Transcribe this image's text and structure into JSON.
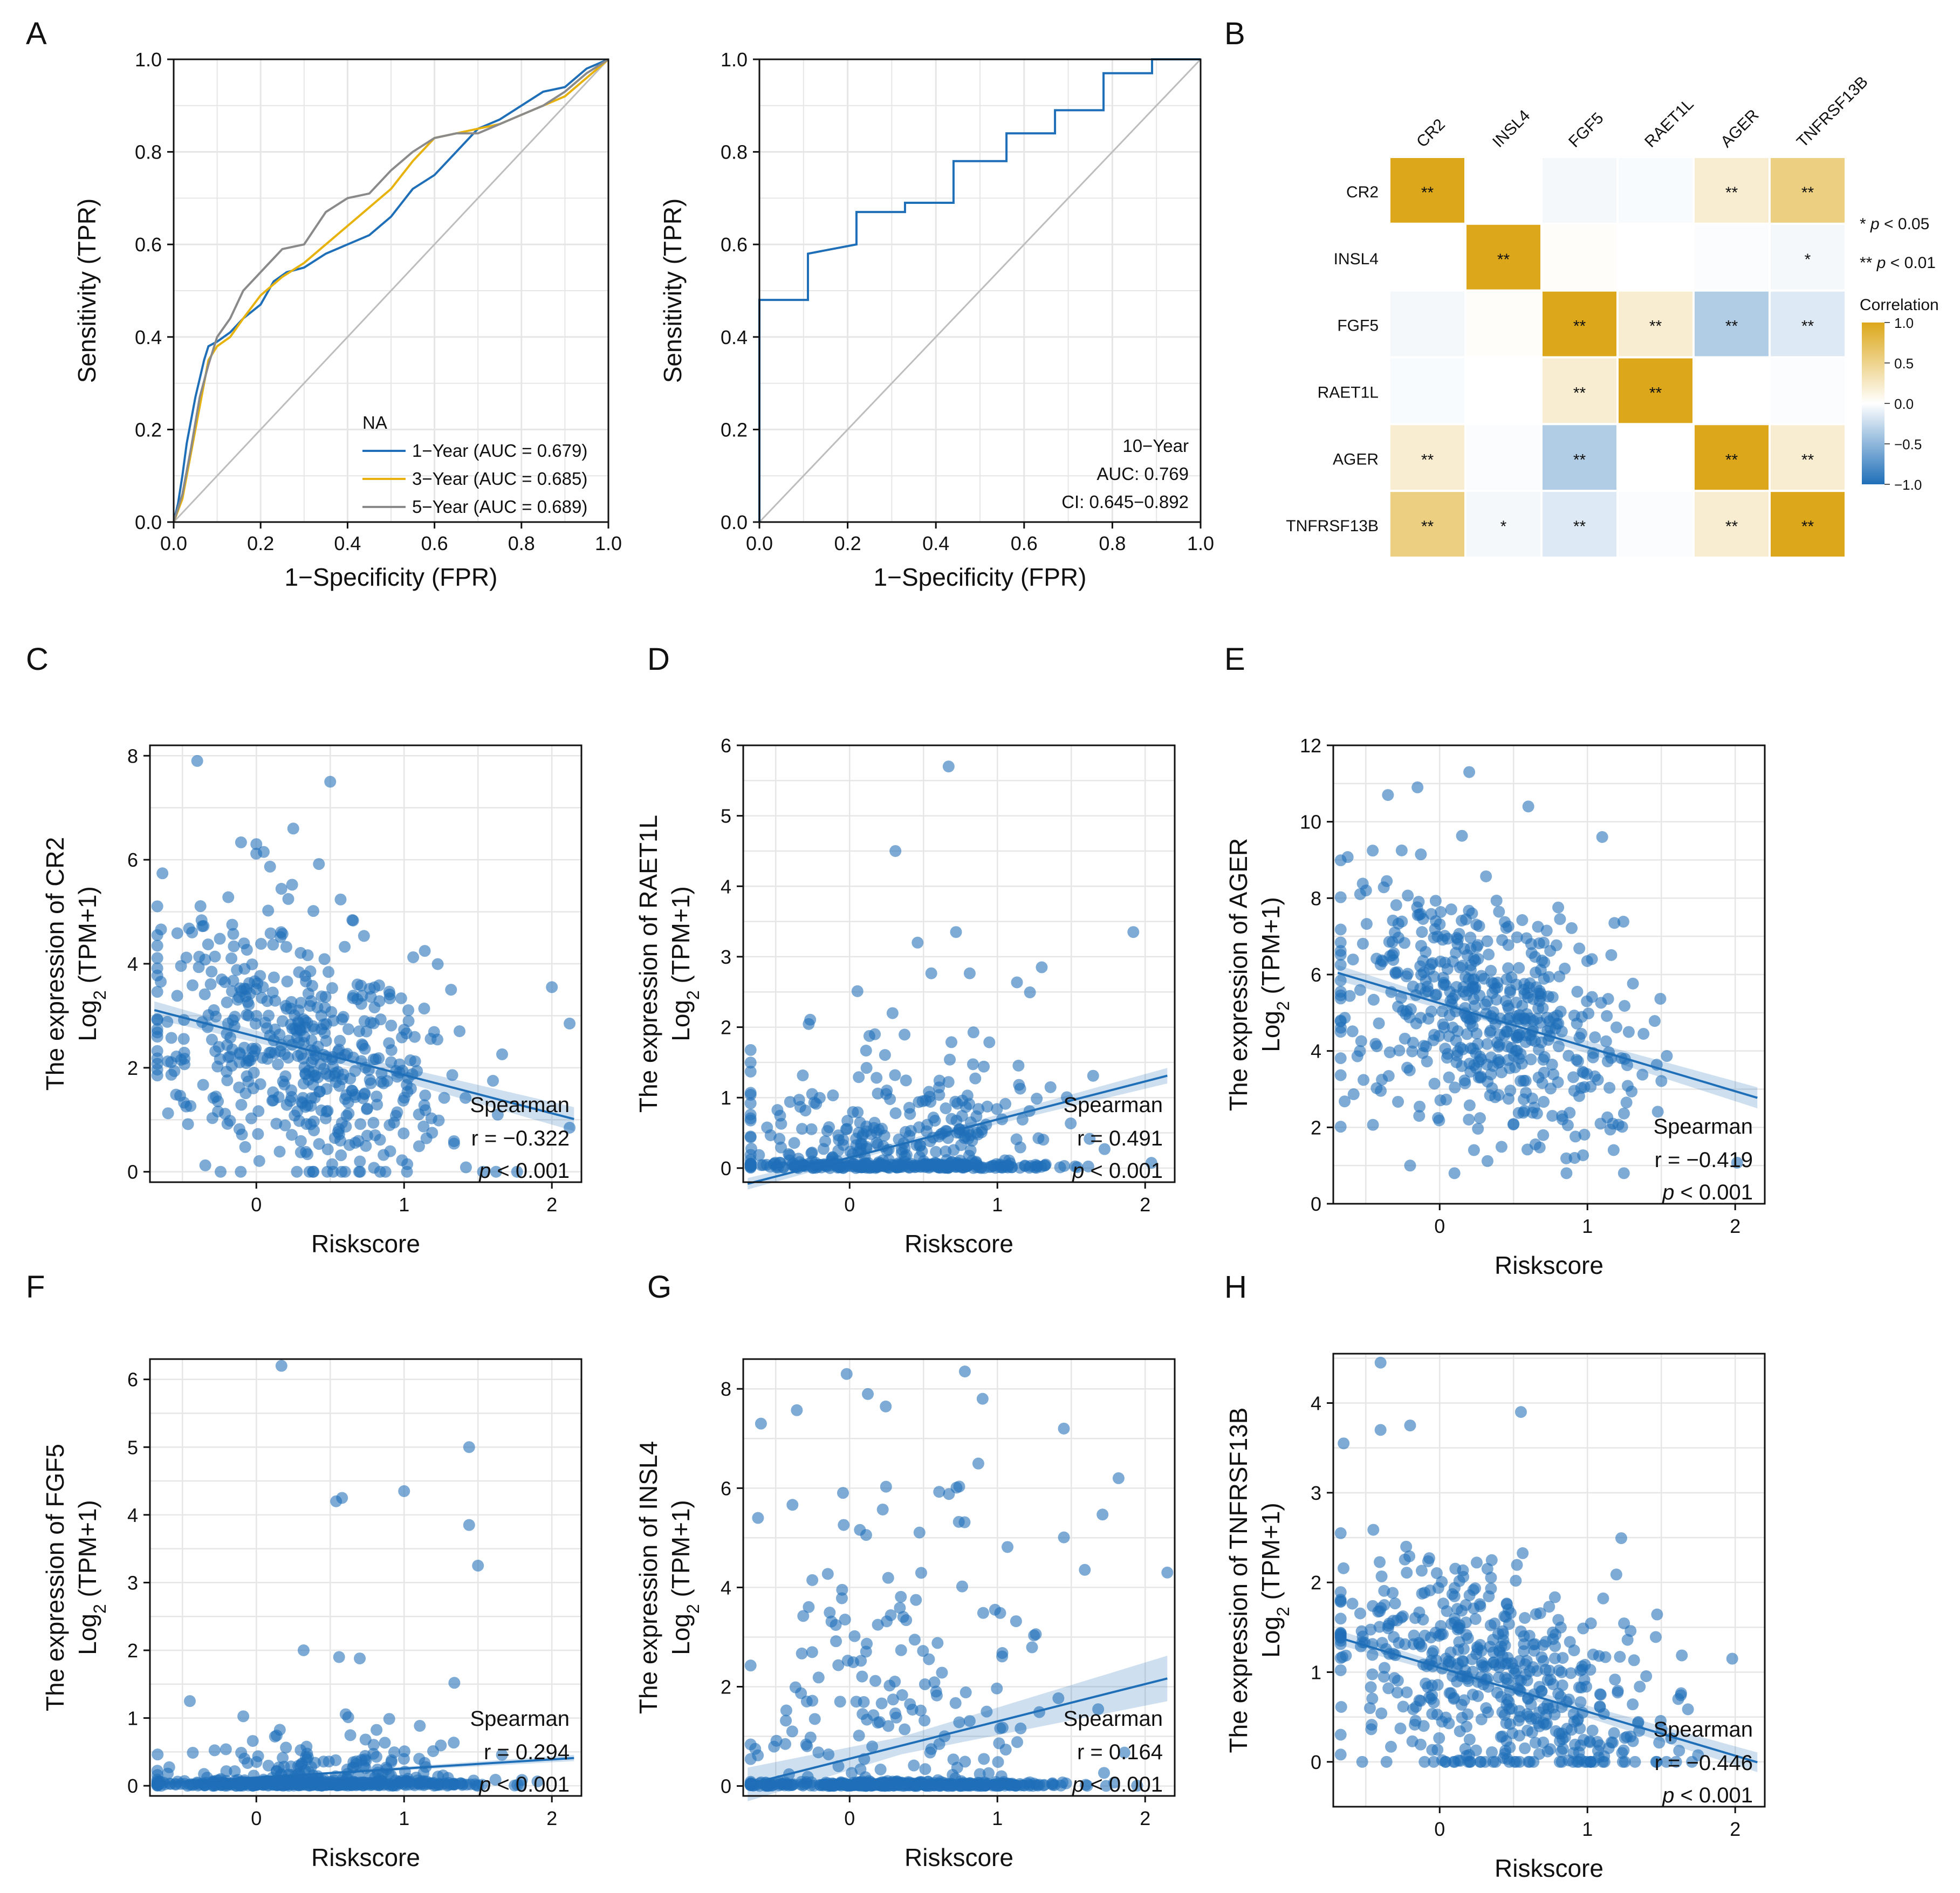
{
  "panels": {
    "A": "A",
    "B": "B",
    "C": "C",
    "D": "D",
    "E": "E",
    "F": "F",
    "G": "G",
    "H": "H"
  },
  "colors": {
    "line_1yr": "#1f6fb8",
    "line_3yr": "#e8b20c",
    "line_5yr": "#8a8a8a",
    "diagonal": "#bdbdbd",
    "scatter": "#1f6fb8",
    "corr_pos": "#dca71a",
    "corr_neg": "#1f6fb8"
  },
  "chart_data": [
    {
      "id": "roc_multi",
      "type": "line",
      "xlabel": "1−Specificity (FPR)",
      "ylabel": "Sensitivity (TPR)",
      "xlim": [
        0,
        1
      ],
      "ylim": [
        0,
        1
      ],
      "xticks": [
        "0.0",
        "0.2",
        "0.4",
        "0.6",
        "0.8",
        "1.0"
      ],
      "yticks": [
        "0.0",
        "0.2",
        "0.4",
        "0.6",
        "0.8",
        "1.0"
      ],
      "legend_title": "NA",
      "series": [
        {
          "name": "1−Year (AUC = 0.679)",
          "color": "#1f6fb8",
          "x": [
            0,
            0.01,
            0.02,
            0.03,
            0.04,
            0.05,
            0.06,
            0.07,
            0.08,
            0.1,
            0.13,
            0.16,
            0.2,
            0.23,
            0.26,
            0.3,
            0.35,
            0.4,
            0.45,
            0.5,
            0.55,
            0.6,
            0.65,
            0.7,
            0.75,
            0.8,
            0.85,
            0.9,
            0.95,
            1.0
          ],
          "y": [
            0,
            0.04,
            0.1,
            0.17,
            0.22,
            0.27,
            0.31,
            0.35,
            0.38,
            0.39,
            0.41,
            0.44,
            0.47,
            0.52,
            0.54,
            0.55,
            0.58,
            0.6,
            0.62,
            0.66,
            0.72,
            0.75,
            0.8,
            0.85,
            0.87,
            0.9,
            0.93,
            0.94,
            0.98,
            1.0
          ]
        },
        {
          "name": "3−Year (AUC = 0.685)",
          "color": "#e8b20c",
          "x": [
            0,
            0.02,
            0.04,
            0.06,
            0.08,
            0.1,
            0.13,
            0.16,
            0.2,
            0.25,
            0.3,
            0.35,
            0.4,
            0.45,
            0.5,
            0.55,
            0.6,
            0.65,
            0.7,
            0.75,
            0.8,
            0.85,
            0.9,
            0.95,
            1.0
          ],
          "y": [
            0,
            0.05,
            0.15,
            0.25,
            0.35,
            0.38,
            0.4,
            0.44,
            0.49,
            0.53,
            0.56,
            0.6,
            0.64,
            0.68,
            0.72,
            0.78,
            0.83,
            0.84,
            0.85,
            0.86,
            0.88,
            0.9,
            0.92,
            0.96,
            1.0
          ]
        },
        {
          "name": "5−Year (AUC = 0.689)",
          "color": "#8a8a8a",
          "x": [
            0,
            0.02,
            0.04,
            0.06,
            0.08,
            0.1,
            0.13,
            0.16,
            0.2,
            0.25,
            0.3,
            0.35,
            0.4,
            0.45,
            0.5,
            0.55,
            0.6,
            0.65,
            0.7,
            0.75,
            0.8,
            0.85,
            0.9,
            0.95,
            1.0
          ],
          "y": [
            0,
            0.06,
            0.16,
            0.27,
            0.34,
            0.4,
            0.44,
            0.5,
            0.54,
            0.59,
            0.6,
            0.67,
            0.7,
            0.71,
            0.76,
            0.8,
            0.83,
            0.84,
            0.84,
            0.86,
            0.88,
            0.9,
            0.93,
            0.97,
            1.0
          ]
        }
      ]
    },
    {
      "id": "roc_10yr",
      "type": "line",
      "xlabel": "1−Specificity (FPR)",
      "ylabel": "Sensitivity (TPR)",
      "xlim": [
        0,
        1
      ],
      "ylim": [
        0,
        1
      ],
      "xticks": [
        "0.0",
        "0.2",
        "0.4",
        "0.6",
        "0.8",
        "1.0"
      ],
      "yticks": [
        "0.0",
        "0.2",
        "0.4",
        "0.6",
        "0.8",
        "1.0"
      ],
      "annotations": [
        "10−Year",
        "AUC: 0.769",
        "CI: 0.645−0.892"
      ],
      "series": [
        {
          "name": "10−Year",
          "color": "#1f6fb8",
          "x": [
            0,
            0,
            0.11,
            0.11,
            0.22,
            0.22,
            0.33,
            0.33,
            0.44,
            0.44,
            0.56,
            0.56,
            0.67,
            0.67,
            0.78,
            0.78,
            0.89,
            0.89,
            1.0
          ],
          "y": [
            0,
            0.48,
            0.48,
            0.58,
            0.6,
            0.67,
            0.67,
            0.69,
            0.69,
            0.78,
            0.78,
            0.84,
            0.84,
            0.89,
            0.89,
            0.97,
            0.97,
            1.0,
            1.0
          ]
        }
      ]
    },
    {
      "id": "corr_heatmap",
      "type": "heatmap",
      "genes": [
        "CR2",
        "INSL4",
        "FGF5",
        "RAET1L",
        "AGER",
        "TNFRSF13B"
      ],
      "values": [
        [
          1.0,
          0.0,
          -0.05,
          -0.03,
          0.2,
          0.55
        ],
        [
          0.0,
          1.0,
          0.02,
          0.0,
          -0.02,
          -0.05
        ],
        [
          -0.05,
          0.02,
          1.0,
          0.2,
          -0.35,
          -0.15
        ],
        [
          -0.03,
          0.0,
          0.2,
          1.0,
          0.0,
          -0.02
        ],
        [
          0.2,
          -0.02,
          -0.35,
          0.0,
          1.0,
          0.2
        ],
        [
          0.55,
          -0.05,
          -0.15,
          -0.02,
          0.2,
          1.0
        ]
      ],
      "significance": [
        [
          "**",
          "",
          "",
          "",
          "**",
          "**"
        ],
        [
          "",
          "**",
          "",
          "",
          "",
          "*"
        ],
        [
          "",
          "",
          "**",
          "**",
          "**",
          "**"
        ],
        [
          "",
          "",
          "**",
          "**",
          "",
          ""
        ],
        [
          "**",
          "",
          "**",
          "",
          "**",
          "**"
        ],
        [
          "**",
          "*",
          "**",
          "",
          "**",
          "**"
        ]
      ],
      "legend_title": "Correlation",
      "legend_ticks": [
        "1.0",
        "0.5",
        "0.0",
        "−0.5",
        "−1.0"
      ],
      "legend_range": [
        -1,
        1
      ],
      "p_legend": [
        {
          "stars": "*",
          "text": "p < 0.05"
        },
        {
          "stars": "**",
          "text": "p < 0.01"
        }
      ]
    },
    {
      "id": "sc_cr2",
      "type": "scatter",
      "gene": "CR2",
      "ylabel_main": "The expression of CR2",
      "xlabel": "Riskscore",
      "xlim": [
        -0.72,
        2.2
      ],
      "ylim": [
        -0.2,
        8.2
      ],
      "xticks": [
        0,
        1,
        2
      ],
      "yticks": [
        0,
        2,
        4,
        6,
        8
      ],
      "y_base": 0,
      "n_points": 500,
      "r": -0.322,
      "fit_at_x0": 2.6,
      "spread": 1.25,
      "zero_frac": 0.0,
      "outliers": [
        [
          -0.4,
          7.9
        ],
        [
          0.5,
          7.5
        ],
        [
          0.25,
          6.6
        ],
        [
          0.0,
          6.3
        ],
        [
          0.05,
          6.15
        ],
        [
          2.0,
          3.55
        ],
        [
          2.12,
          2.85
        ]
      ],
      "stats": [
        "Spearman",
        "r = −0.322",
        "p < 0.001"
      ]
    },
    {
      "id": "sc_raet1l",
      "type": "scatter",
      "gene": "RAET1L",
      "ylabel_main": "The expression of RAET1L",
      "xlabel": "Riskscore",
      "xlim": [
        -0.72,
        2.2
      ],
      "ylim": [
        -0.2,
        6.0
      ],
      "xticks": [
        0,
        1,
        2
      ],
      "yticks": [
        0,
        1,
        2,
        3,
        4,
        5,
        6
      ],
      "y_base": 0,
      "n_points": 500,
      "r": 0.491,
      "fit_at_x0": 0.15,
      "spread": 0.6,
      "zero_frac": 0.55,
      "outliers": [
        [
          0.67,
          5.7
        ],
        [
          0.31,
          4.5
        ],
        [
          0.72,
          3.35
        ],
        [
          1.92,
          3.35
        ],
        [
          0.46,
          3.2
        ],
        [
          1.3,
          2.85
        ]
      ],
      "stats": [
        "Spearman",
        "r = 0.491",
        "p < 0.001"
      ]
    },
    {
      "id": "sc_ager",
      "type": "scatter",
      "gene": "AGER",
      "ylabel_main": "The expression of AGER",
      "xlabel": "Riskscore",
      "xlim": [
        -0.72,
        2.2
      ],
      "ylim": [
        0,
        12
      ],
      "xticks": [
        0,
        1,
        2
      ],
      "yticks": [
        0,
        2,
        4,
        6,
        8,
        10,
        12
      ],
      "y_base": 0.8,
      "n_points": 520,
      "r": -0.419,
      "fit_at_x0": 5.25,
      "spread": 1.5,
      "zero_frac": 0.0,
      "outliers": [
        [
          0.2,
          11.3
        ],
        [
          -0.15,
          10.9
        ],
        [
          -0.35,
          10.7
        ],
        [
          0.6,
          10.4
        ],
        [
          1.1,
          9.6
        ],
        [
          -0.2,
          1.0
        ],
        [
          0.1,
          0.8
        ]
      ],
      "stats": [
        "Spearman",
        "r = −0.419",
        "p < 0.001"
      ]
    },
    {
      "id": "sc_fgf5",
      "type": "scatter",
      "gene": "FGF5",
      "ylabel_main": "The expression of FGF5",
      "xlabel": "Riskscore",
      "xlim": [
        -0.72,
        2.2
      ],
      "ylim": [
        -0.15,
        6.3
      ],
      "xticks": [
        0,
        1,
        2
      ],
      "yticks": [
        0,
        1,
        2,
        3,
        4,
        5,
        6
      ],
      "y_base": 0,
      "n_points": 520,
      "r": 0.294,
      "fit_at_x0": 0.12,
      "spread": 0.25,
      "zero_frac": 0.72,
      "outliers": [
        [
          0.17,
          6.2
        ],
        [
          1.44,
          5.0
        ],
        [
          0.58,
          4.25
        ],
        [
          0.54,
          4.2
        ],
        [
          1.0,
          4.35
        ],
        [
          1.44,
          3.85
        ],
        [
          1.5,
          3.25
        ],
        [
          0.32,
          2.0
        ],
        [
          0.56,
          1.9
        ],
        [
          0.7,
          1.88
        ],
        [
          1.34,
          1.52
        ],
        [
          -0.45,
          1.25
        ]
      ],
      "stats": [
        "Spearman",
        "r = 0.294",
        "p < 0.001"
      ]
    },
    {
      "id": "sc_insl4",
      "type": "scatter",
      "gene": "INSL4",
      "ylabel_main": "The expression of INSL4",
      "xlabel": "Riskscore",
      "xlim": [
        -0.72,
        2.2
      ],
      "ylim": [
        -0.2,
        8.6
      ],
      "xticks": [
        0,
        1,
        2
      ],
      "yticks": [
        0,
        2,
        4,
        6,
        8
      ],
      "y_base": 0,
      "n_points": 560,
      "r": 0.164,
      "fit_at_x0": 0.55,
      "spread": 2.5,
      "zero_frac": 0.68,
      "outliers": [
        [
          -0.02,
          8.3
        ],
        [
          0.78,
          8.35
        ],
        [
          -0.6,
          7.3
        ],
        [
          0.9,
          7.8
        ],
        [
          1.45,
          7.2
        ],
        [
          1.82,
          6.2
        ],
        [
          2.15,
          4.3
        ],
        [
          -0.62,
          5.4
        ]
      ],
      "stats": [
        "Spearman",
        "r = 0.164",
        "p < 0.001"
      ]
    },
    {
      "id": "sc_tnfrsf13b",
      "type": "scatter",
      "gene": "TNFRSF13B",
      "ylabel_main": "The expression of TNFRSF13B",
      "xlabel": "Riskscore",
      "xlim": [
        -0.72,
        2.2
      ],
      "ylim": [
        -0.5,
        4.55
      ],
      "xticks": [
        0,
        1,
        2
      ],
      "yticks": [
        0,
        1,
        2,
        3,
        4
      ],
      "y_base": 0,
      "n_points": 520,
      "r": -0.446,
      "fit_at_x0": 1.05,
      "spread": 0.6,
      "zero_frac": 0.0,
      "outliers": [
        [
          -0.4,
          4.45
        ],
        [
          0.55,
          3.9
        ],
        [
          -0.4,
          3.7
        ],
        [
          -0.2,
          3.75
        ],
        [
          -0.65,
          3.55
        ],
        [
          1.98,
          1.15
        ]
      ],
      "stats": [
        "Spearman",
        "r = −0.446",
        "p < 0.001"
      ]
    }
  ],
  "common": {
    "ylabel_prefix": "Log",
    "ylabel_sub": "2",
    "ylabel_suffix": " (TPM+1)"
  }
}
